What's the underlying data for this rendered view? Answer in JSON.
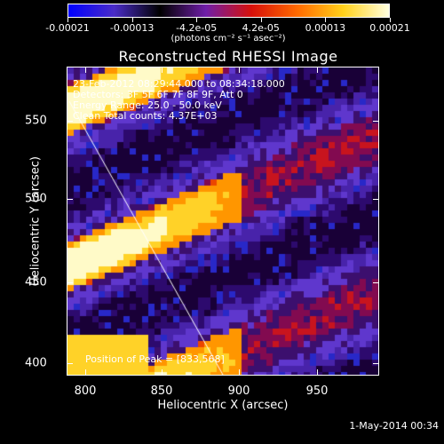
{
  "colorbar": {
    "labels": [
      "-0.00021",
      "-0.00013",
      "-4.2e-05",
      "4.2e-05",
      "0.00013",
      "0.00021"
    ],
    "units": "(photons cm⁻² s⁻¹ asec⁻²)",
    "colors": [
      "#0000ff",
      "#4a2cc8",
      "#000000",
      "#6f1ea8",
      "#d8100a",
      "#ff6a00",
      "#ffd11a",
      "#ffffe0"
    ]
  },
  "plot": {
    "title": "Reconstructed RHESSI Image",
    "info": {
      "time": "23-Feb-2012 08:29:44.000 to 08:34:18.000",
      "detectors": "Detectors: 3F 5F 6F 7F 8F 9F, Att 0",
      "energy": "Energy Range: 25.0 - 50.0 keV",
      "clean": "Clean     Total counts: 4.37E+03",
      "peak": "Position of Peak = [833,568]"
    },
    "xlabel": "Heliocentric X (arcsec)",
    "ylabel": "Heliocentric Y (arcsec)",
    "xticks": [
      "800",
      "850",
      "900",
      "950"
    ],
    "yticks": [
      "550",
      "500",
      "450",
      "400"
    ]
  },
  "chart_data": {
    "type": "heatmap",
    "title": "Reconstructed RHESSI Image",
    "xlabel": "Heliocentric X (arcsec)",
    "ylabel": "Heliocentric Y (arcsec)",
    "xlim": [
      789,
      982
    ],
    "ylim": [
      393,
      583
    ],
    "xticks": [
      800,
      850,
      900,
      950
    ],
    "yticks": [
      400,
      450,
      500,
      550
    ],
    "peak": [
      833,
      568
    ],
    "colorbar_range": [
      -0.00021,
      0.00021
    ]
  },
  "footer": {
    "date": "1-May-2014 00:34"
  }
}
